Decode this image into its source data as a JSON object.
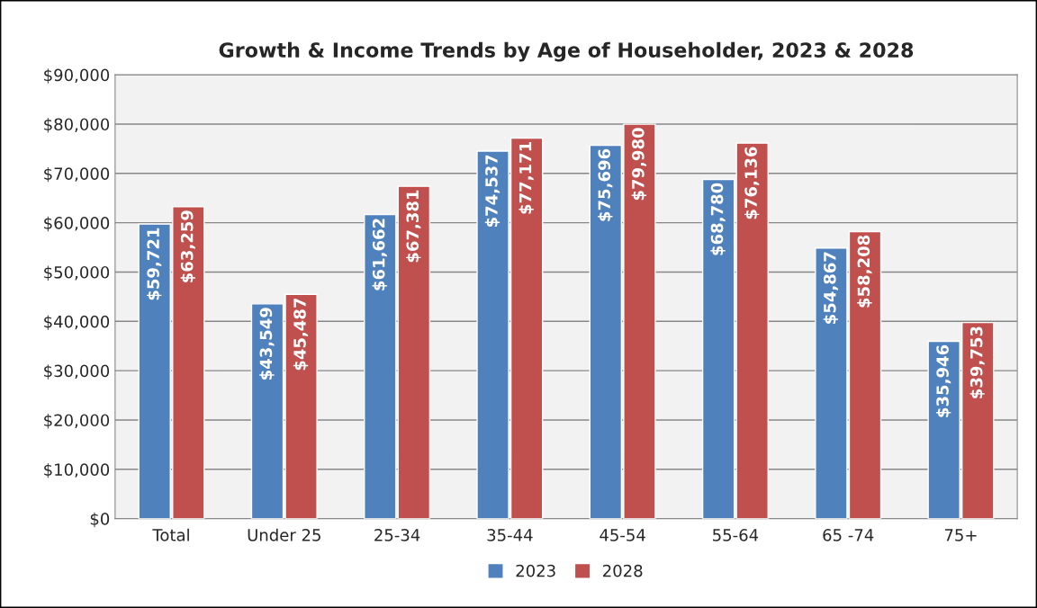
{
  "chart_data": {
    "type": "bar",
    "title": "Growth & Income Trends by Age of Householder, 2023 & 2028",
    "categories": [
      "Total",
      "Under 25",
      "25-34",
      "35-44",
      "45-54",
      "55-64",
      "65 -74",
      "75+"
    ],
    "series": [
      {
        "name": "2023",
        "color": "#4f81bd",
        "values": [
          59721,
          43549,
          61662,
          74537,
          75696,
          68780,
          54867,
          35946
        ],
        "value_labels": [
          "$59,721",
          "$43,549",
          "$61,662",
          "$74,537",
          "$75,696",
          "$68,780",
          "$54,867",
          "$35,946"
        ]
      },
      {
        "name": "2028",
        "color": "#c0504d",
        "values": [
          63259,
          45487,
          67381,
          77171,
          79980,
          76136,
          58208,
          39753
        ],
        "value_labels": [
          "$63,259",
          "$45,487",
          "$67,381",
          "$77,171",
          "$79,980",
          "$76,136",
          "$58,208",
          "$39,753"
        ]
      }
    ],
    "ylim": [
      0,
      90000
    ],
    "yticks": [
      {
        "value": 0,
        "label": "$0"
      },
      {
        "value": 10000,
        "label": "$10,000"
      },
      {
        "value": 20000,
        "label": "$20,000"
      },
      {
        "value": 30000,
        "label": "$30,000"
      },
      {
        "value": 40000,
        "label": "$40,000"
      },
      {
        "value": 50000,
        "label": "$50,000"
      },
      {
        "value": 60000,
        "label": "$60,000"
      },
      {
        "value": 70000,
        "label": "$70,000"
      },
      {
        "value": 80000,
        "label": "$80,000"
      },
      {
        "value": 90000,
        "label": "$90,000"
      }
    ],
    "grid": "y",
    "legend": "bottom"
  }
}
